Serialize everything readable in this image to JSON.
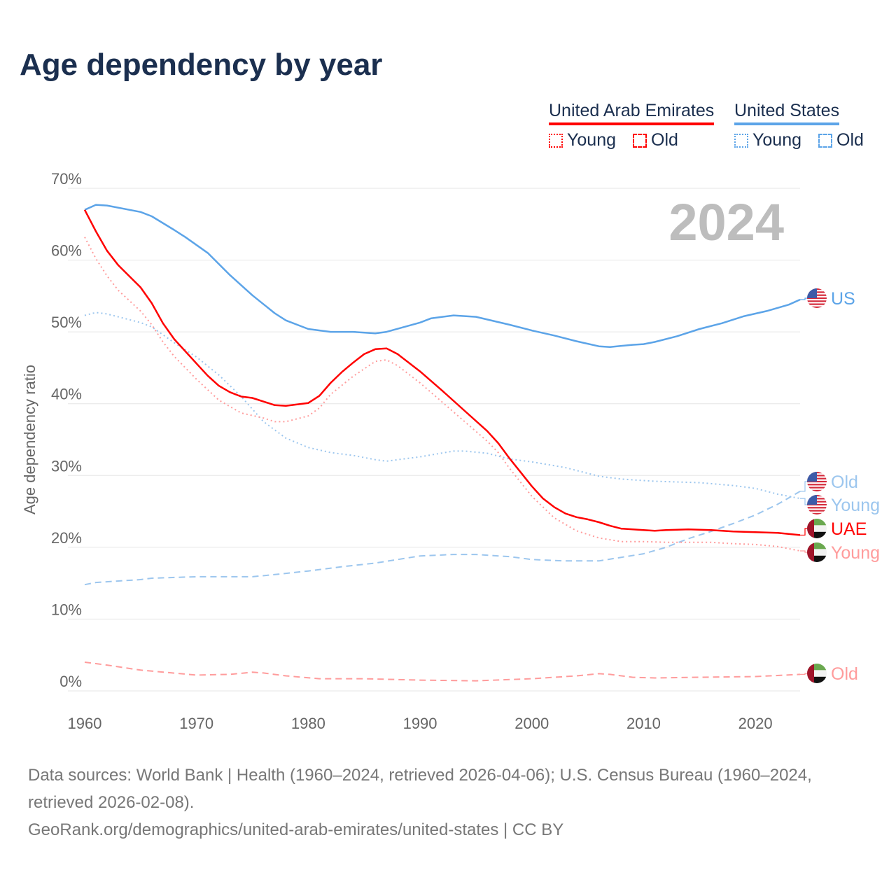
{
  "title": "Age dependency by year",
  "legend": {
    "groups": [
      {
        "name": "United Arab Emirates",
        "color": "#ff0000",
        "items": [
          "Young",
          "Old"
        ]
      },
      {
        "name": "United States",
        "color": "#5ca4e8",
        "items": [
          "Young",
          "Old"
        ]
      }
    ]
  },
  "year_overlay": "2024",
  "footer": {
    "sources": "Data sources: World Bank | Health (1960–2024, retrieved 2026-04-06); U.S. Census Bureau (1960–2024, retrieved 2026-02-08).",
    "link": "GeoRank.org/demographics/united-arab-emirates/united-states | CC BY"
  },
  "chart_data": {
    "type": "line",
    "title": "Age dependency by year",
    "xlabel": "",
    "ylabel": "Age dependency ratio",
    "xlim": [
      1960,
      2024
    ],
    "ylim": [
      0,
      70
    ],
    "xticks": [
      "1960",
      "1970",
      "1980",
      "1990",
      "2000",
      "2010",
      "2020"
    ],
    "yticks": [
      "0%",
      "10%",
      "20%",
      "30%",
      "40%",
      "50%",
      "60%",
      "70%"
    ],
    "grid": true,
    "series": [
      {
        "name": "US",
        "country": "United States",
        "kind": "total",
        "color": "#5ca4e8",
        "label": "US",
        "points": [
          [
            1960,
            67.0
          ],
          [
            1961,
            67.7
          ],
          [
            1962,
            67.6
          ],
          [
            1965,
            66.7
          ],
          [
            1966,
            66.1
          ],
          [
            1968,
            64.2
          ],
          [
            1969,
            63.2
          ],
          [
            1971,
            61.0
          ],
          [
            1973,
            57.9
          ],
          [
            1975,
            55.1
          ],
          [
            1977,
            52.6
          ],
          [
            1978,
            51.6
          ],
          [
            1980,
            50.4
          ],
          [
            1982,
            50.0
          ],
          [
            1984,
            50.0
          ],
          [
            1986,
            49.8
          ],
          [
            1987,
            50.0
          ],
          [
            1990,
            51.3
          ],
          [
            1991,
            51.9
          ],
          [
            1993,
            52.3
          ],
          [
            1995,
            52.1
          ],
          [
            1998,
            51.0
          ],
          [
            2000,
            50.2
          ],
          [
            2002,
            49.5
          ],
          [
            2004,
            48.7
          ],
          [
            2006,
            48.0
          ],
          [
            2007,
            47.9
          ],
          [
            2009,
            48.2
          ],
          [
            2010,
            48.3
          ],
          [
            2011,
            48.6
          ],
          [
            2013,
            49.4
          ],
          [
            2015,
            50.4
          ],
          [
            2017,
            51.2
          ],
          [
            2019,
            52.2
          ],
          [
            2021,
            52.9
          ],
          [
            2023,
            53.8
          ],
          [
            2024,
            54.5
          ]
        ]
      },
      {
        "name": "US Young",
        "country": "United States",
        "kind": "young",
        "color": "#9cc6ee",
        "label": "Young",
        "points": [
          [
            1960,
            52.3
          ],
          [
            1961,
            52.7
          ],
          [
            1962,
            52.5
          ],
          [
            1965,
            51.3
          ],
          [
            1966,
            50.7
          ],
          [
            1968,
            48.5
          ],
          [
            1970,
            46.5
          ],
          [
            1972,
            44.0
          ],
          [
            1974,
            41.0
          ],
          [
            1976,
            37.5
          ],
          [
            1978,
            35.2
          ],
          [
            1980,
            33.9
          ],
          [
            1982,
            33.2
          ],
          [
            1984,
            32.8
          ],
          [
            1986,
            32.2
          ],
          [
            1987,
            32.0
          ],
          [
            1990,
            32.6
          ],
          [
            1993,
            33.4
          ],
          [
            1994,
            33.4
          ],
          [
            1996,
            33.1
          ],
          [
            1998,
            32.3
          ],
          [
            2000,
            31.9
          ],
          [
            2003,
            31.1
          ],
          [
            2006,
            29.9
          ],
          [
            2008,
            29.5
          ],
          [
            2011,
            29.2
          ],
          [
            2015,
            29.0
          ],
          [
            2018,
            28.6
          ],
          [
            2020,
            28.2
          ],
          [
            2022,
            27.4
          ],
          [
            2024,
            26.8
          ]
        ]
      },
      {
        "name": "US Old",
        "country": "United States",
        "kind": "old",
        "color": "#9cc6ee",
        "label": "Old",
        "points": [
          [
            1960,
            14.8
          ],
          [
            1961,
            15.1
          ],
          [
            1965,
            15.5
          ],
          [
            1966,
            15.7
          ],
          [
            1970,
            15.9
          ],
          [
            1975,
            15.9
          ],
          [
            1977,
            16.2
          ],
          [
            1980,
            16.7
          ],
          [
            1983,
            17.3
          ],
          [
            1986,
            17.8
          ],
          [
            1990,
            18.8
          ],
          [
            1993,
            19.0
          ],
          [
            1995,
            19.0
          ],
          [
            1998,
            18.7
          ],
          [
            2000,
            18.3
          ],
          [
            2003,
            18.1
          ],
          [
            2006,
            18.1
          ],
          [
            2008,
            18.6
          ],
          [
            2010,
            19.1
          ],
          [
            2012,
            20.0
          ],
          [
            2014,
            21.2
          ],
          [
            2016,
            22.2
          ],
          [
            2018,
            23.3
          ],
          [
            2020,
            24.5
          ],
          [
            2022,
            26.0
          ],
          [
            2024,
            27.8
          ]
        ]
      },
      {
        "name": "UAE",
        "country": "United Arab Emirates",
        "kind": "total",
        "color": "#ff0000",
        "label": "UAE",
        "points": [
          [
            1960,
            67.0
          ],
          [
            1961,
            64.0
          ],
          [
            1962,
            61.3
          ],
          [
            1963,
            59.3
          ],
          [
            1965,
            56.2
          ],
          [
            1966,
            54.0
          ],
          [
            1967,
            51.2
          ],
          [
            1968,
            49.0
          ],
          [
            1970,
            45.6
          ],
          [
            1971,
            43.9
          ],
          [
            1972,
            42.5
          ],
          [
            1973,
            41.6
          ],
          [
            1974,
            41.0
          ],
          [
            1975,
            40.8
          ],
          [
            1977,
            39.8
          ],
          [
            1978,
            39.7
          ],
          [
            1980,
            40.1
          ],
          [
            1981,
            41.1
          ],
          [
            1982,
            42.9
          ],
          [
            1983,
            44.4
          ],
          [
            1984,
            45.7
          ],
          [
            1985,
            46.9
          ],
          [
            1986,
            47.6
          ],
          [
            1987,
            47.7
          ],
          [
            1988,
            46.9
          ],
          [
            1990,
            44.5
          ],
          [
            1992,
            41.8
          ],
          [
            1994,
            39.0
          ],
          [
            1996,
            36.2
          ],
          [
            1997,
            34.5
          ],
          [
            1998,
            32.4
          ],
          [
            2000,
            28.5
          ],
          [
            2001,
            26.8
          ],
          [
            2002,
            25.6
          ],
          [
            2003,
            24.7
          ],
          [
            2004,
            24.2
          ],
          [
            2005,
            23.9
          ],
          [
            2006,
            23.5
          ],
          [
            2007,
            23.0
          ],
          [
            2008,
            22.6
          ],
          [
            2010,
            22.4
          ],
          [
            2011,
            22.3
          ],
          [
            2012,
            22.4
          ],
          [
            2014,
            22.5
          ],
          [
            2016,
            22.4
          ],
          [
            2018,
            22.2
          ],
          [
            2020,
            22.1
          ],
          [
            2022,
            22.0
          ],
          [
            2024,
            21.7
          ]
        ]
      },
      {
        "name": "UAE Young",
        "country": "United Arab Emirates",
        "kind": "young",
        "color": "#ff9c9c",
        "label": "Young",
        "points": [
          [
            1960,
            63.2
          ],
          [
            1961,
            60.2
          ],
          [
            1962,
            57.8
          ],
          [
            1963,
            55.8
          ],
          [
            1965,
            52.9
          ],
          [
            1966,
            51.0
          ],
          [
            1967,
            48.6
          ],
          [
            1968,
            46.6
          ],
          [
            1970,
            43.4
          ],
          [
            1972,
            40.5
          ],
          [
            1974,
            38.7
          ],
          [
            1976,
            38.0
          ],
          [
            1977,
            37.5
          ],
          [
            1978,
            37.5
          ],
          [
            1980,
            38.3
          ],
          [
            1981,
            39.4
          ],
          [
            1982,
            41.3
          ],
          [
            1984,
            43.8
          ],
          [
            1986,
            45.9
          ],
          [
            1987,
            46.1
          ],
          [
            1988,
            45.3
          ],
          [
            1990,
            42.9
          ],
          [
            1992,
            40.2
          ],
          [
            1994,
            37.5
          ],
          [
            1996,
            34.8
          ],
          [
            1997,
            33.2
          ],
          [
            1998,
            31.0
          ],
          [
            2000,
            27.1
          ],
          [
            2002,
            24.1
          ],
          [
            2004,
            22.3
          ],
          [
            2006,
            21.3
          ],
          [
            2008,
            20.8
          ],
          [
            2010,
            20.8
          ],
          [
            2012,
            20.7
          ],
          [
            2016,
            20.7
          ],
          [
            2018,
            20.5
          ],
          [
            2020,
            20.4
          ],
          [
            2022,
            20.1
          ],
          [
            2024,
            19.5
          ]
        ]
      },
      {
        "name": "UAE Old",
        "country": "United Arab Emirates",
        "kind": "old",
        "color": "#ff9c9c",
        "label": "Old",
        "points": [
          [
            1960,
            4.0
          ],
          [
            1962,
            3.6
          ],
          [
            1965,
            2.9
          ],
          [
            1970,
            2.2
          ],
          [
            1973,
            2.3
          ],
          [
            1975,
            2.6
          ],
          [
            1976,
            2.5
          ],
          [
            1978,
            2.1
          ],
          [
            1981,
            1.7
          ],
          [
            1985,
            1.7
          ],
          [
            1990,
            1.5
          ],
          [
            1995,
            1.4
          ],
          [
            2000,
            1.7
          ],
          [
            2004,
            2.1
          ],
          [
            2006,
            2.4
          ],
          [
            2007,
            2.3
          ],
          [
            2009,
            1.9
          ],
          [
            2011,
            1.8
          ],
          [
            2015,
            1.9
          ],
          [
            2020,
            2.0
          ],
          [
            2024,
            2.3
          ]
        ]
      }
    ]
  }
}
